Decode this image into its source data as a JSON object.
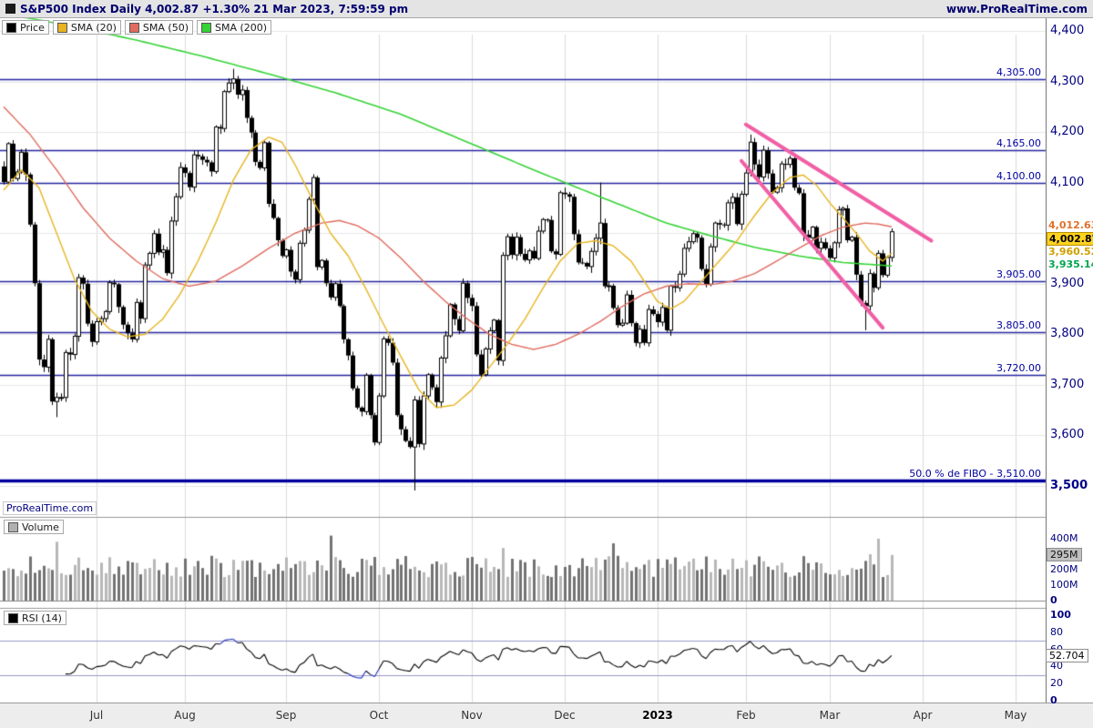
{
  "header": {
    "title": "S&P500 Index Daily 4,002.87 +1.30% 21 Mar 2023, 7:59:59 pm",
    "website": "www.ProRealTime.com"
  },
  "watermark": "ProRealTime.com",
  "legends": {
    "main": [
      {
        "label": "Price",
        "color": "#000000"
      },
      {
        "label": "SMA (20)",
        "color": "#e8b520"
      },
      {
        "label": "SMA (50)",
        "color": "#e06c60"
      },
      {
        "label": "SMA (200)",
        "color": "#35d435"
      }
    ],
    "volume": [
      {
        "label": "Volume",
        "color": "#b0b0b0"
      }
    ],
    "rsi": [
      {
        "label": "RSI (14)",
        "color": "#000000"
      }
    ]
  },
  "axis": {
    "price_ticks": [
      {
        "label": "4,400",
        "value": 4400
      },
      {
        "label": "4,300",
        "value": 4300
      },
      {
        "label": "4,200",
        "value": 4200
      },
      {
        "label": "4,100",
        "value": 4100
      },
      {
        "label": "3,900",
        "value": 3900
      },
      {
        "label": "3,800",
        "value": 3800
      },
      {
        "label": "3,700",
        "value": 3700
      },
      {
        "label": "3,600",
        "value": 3600
      },
      {
        "label": "3,500",
        "value": 3500,
        "bold": true
      }
    ],
    "volume_ticks": [
      {
        "label": "400M",
        "value": 400
      },
      {
        "label": "200M",
        "value": 200
      },
      {
        "label": "100M",
        "value": 100
      },
      {
        "label": "0",
        "value": 0,
        "bold": true
      }
    ],
    "volume_current": {
      "label": "295M",
      "value": 295
    },
    "rsi_ticks": [
      {
        "label": "100",
        "value": 100,
        "bold": true
      },
      {
        "label": "80",
        "value": 80
      },
      {
        "label": "60",
        "value": 60
      },
      {
        "label": "40",
        "value": 40
      },
      {
        "label": "20",
        "value": 20
      },
      {
        "label": "0",
        "value": 0,
        "bold": true
      }
    ],
    "rsi_current": {
      "label": "52.704",
      "value": 52.704
    }
  },
  "months": [
    {
      "label": "Jul",
      "index": 21
    },
    {
      "label": "Aug",
      "index": 41
    },
    {
      "label": "Sep",
      "index": 64
    },
    {
      "label": "Oct",
      "index": 85
    },
    {
      "label": "Nov",
      "index": 106
    },
    {
      "label": "Dec",
      "index": 127
    },
    {
      "label": "2023",
      "index": 148,
      "bold": true
    },
    {
      "label": "Feb",
      "index": 168
    },
    {
      "label": "Mar",
      "index": 187
    },
    {
      "label": "Apr",
      "index": 208
    },
    {
      "label": "May",
      "index": 229
    }
  ],
  "levels": [
    {
      "label": "4,305.00",
      "value": 4305
    },
    {
      "label": "4,165.00",
      "value": 4165
    },
    {
      "label": "4,100.00",
      "value": 4100
    },
    {
      "label": "3,905.00",
      "value": 3905
    },
    {
      "label": "3,805.00",
      "value": 3805
    },
    {
      "label": "3,720.00",
      "value": 3720
    },
    {
      "label": "50.0 % de FIBO -  3,510.00",
      "value": 3510,
      "major": true
    }
  ],
  "price_tags": [
    {
      "label": "4,012.63",
      "value": 4012.63,
      "color": "#e0712c",
      "bg": "#ffffff"
    },
    {
      "label": "4,002.87",
      "value": 4002.87,
      "color": "#000000",
      "bg": "#ffd21e"
    },
    {
      "label": "3,960.52",
      "value": 3960.52,
      "color": "#cfa000",
      "bg": "#ffffff"
    },
    {
      "label": "3,935.14",
      "value": 3935.14,
      "color": "#00a651",
      "bg": "#ffffff"
    }
  ],
  "chart_data": [
    {
      "type": "candlestick",
      "title": "S&P500 Index Daily",
      "ylabel": "Price",
      "ylim": [
        3500,
        4400
      ],
      "first_open": 4132,
      "closes": [
        4101,
        4177,
        4108,
        4121,
        4160,
        4116,
        4017,
        3901,
        3750,
        3735,
        3790,
        3667,
        3675,
        3675,
        3764,
        3760,
        3796,
        3912,
        3900,
        3821,
        3785,
        3825,
        3831,
        3845,
        3902,
        3899,
        3854,
        3819,
        3802,
        3790,
        3863,
        3831,
        3937,
        3960,
        3999,
        3962,
        3967,
        3921,
        4024,
        4072,
        4130,
        4119,
        4091,
        4155,
        4152,
        4145,
        4140,
        4122,
        4210,
        4207,
        4280,
        4297,
        4305,
        4274,
        4283,
        4228,
        4199,
        4141,
        4129,
        4179,
        4058,
        4030,
        3986,
        3955,
        3967,
        3924,
        3908,
        3980,
        4006,
        4067,
        4110,
        3933,
        3946,
        3901,
        3873,
        3900,
        3856,
        3790,
        3758,
        3693,
        3655,
        3647,
        3719,
        3640,
        3586,
        3678,
        3791,
        3783,
        3744,
        3640,
        3612,
        3589,
        3577,
        3670,
        3583,
        3678,
        3720,
        3695,
        3666,
        3753,
        3797,
        3859,
        3830,
        3807,
        3901,
        3872,
        3856,
        3760,
        3720,
        3771,
        3807,
        3828,
        3748,
        3956,
        3993,
        3957,
        3992,
        3959,
        3947,
        3965,
        3950,
        4004,
        4027,
        4026,
        3964,
        3958,
        4080,
        4077,
        4072,
        3998,
        3942,
        3941,
        3934,
        3964,
        3990,
        4020,
        3895,
        3896,
        3852,
        3818,
        3822,
        3878,
        3822,
        3783,
        3810,
        3783,
        3849,
        3840,
        3824,
        3853,
        3808,
        3895,
        3892,
        3919,
        3970,
        3983,
        3999,
        3991,
        3929,
        3899,
        3973,
        4020,
        4017,
        4016,
        4060,
        4071,
        4018,
        4077,
        4119,
        4180,
        4136,
        4111,
        4164,
        4118,
        4081,
        4090,
        4137,
        4136,
        4148,
        4090,
        4079,
        3997,
        3991,
        4012,
        3970,
        3982,
        3970,
        3951,
        3981,
        4046,
        4049,
        3986,
        3992,
        3918,
        3862,
        3856,
        3920,
        3892,
        3960,
        3917,
        3952,
        4002.87
      ],
      "wick_overrides": {
        "12": {
          "low": 3636
        },
        "52": {
          "high": 4325
        },
        "93": {
          "low": 3491
        },
        "135": {
          "high": 4100
        },
        "169": {
          "high": 4195
        },
        "195": {
          "low": 3808
        }
      },
      "sma20_anchors": [
        [
          0,
          4085
        ],
        [
          4,
          4125
        ],
        [
          8,
          4090
        ],
        [
          12,
          4000
        ],
        [
          16,
          3910
        ],
        [
          20,
          3845
        ],
        [
          24,
          3810
        ],
        [
          28,
          3795
        ],
        [
          32,
          3800
        ],
        [
          36,
          3830
        ],
        [
          40,
          3880
        ],
        [
          44,
          3945
        ],
        [
          48,
          4020
        ],
        [
          52,
          4105
        ],
        [
          56,
          4165
        ],
        [
          60,
          4190
        ],
        [
          63,
          4180
        ],
        [
          66,
          4135
        ],
        [
          70,
          4065
        ],
        [
          74,
          4000
        ],
        [
          78,
          3955
        ],
        [
          82,
          3890
        ],
        [
          86,
          3820
        ],
        [
          90,
          3755
        ],
        [
          94,
          3690
        ],
        [
          98,
          3655
        ],
        [
          102,
          3660
        ],
        [
          106,
          3690
        ],
        [
          110,
          3735
        ],
        [
          114,
          3780
        ],
        [
          118,
          3830
        ],
        [
          122,
          3890
        ],
        [
          126,
          3945
        ],
        [
          130,
          3980
        ],
        [
          134,
          3985
        ],
        [
          138,
          3975
        ],
        [
          142,
          3945
        ],
        [
          145,
          3905
        ],
        [
          148,
          3865
        ],
        [
          151,
          3850
        ],
        [
          154,
          3865
        ],
        [
          158,
          3905
        ],
        [
          162,
          3945
        ],
        [
          166,
          3985
        ],
        [
          170,
          4035
        ],
        [
          174,
          4080
        ],
        [
          178,
          4110
        ],
        [
          181,
          4115
        ],
        [
          184,
          4095
        ],
        [
          187,
          4060
        ],
        [
          190,
          4030
        ],
        [
          193,
          4000
        ],
        [
          196,
          3965
        ],
        [
          199,
          3945
        ],
        [
          201,
          3960.52
        ]
      ],
      "sma50_anchors": [
        [
          0,
          4250
        ],
        [
          6,
          4195
        ],
        [
          12,
          4125
        ],
        [
          18,
          4050
        ],
        [
          24,
          3990
        ],
        [
          30,
          3945
        ],
        [
          36,
          3910
        ],
        [
          42,
          3895
        ],
        [
          48,
          3905
        ],
        [
          54,
          3935
        ],
        [
          60,
          3970
        ],
        [
          66,
          4000
        ],
        [
          72,
          4020
        ],
        [
          76,
          4025
        ],
        [
          80,
          4015
        ],
        [
          85,
          3990
        ],
        [
          90,
          3950
        ],
        [
          95,
          3905
        ],
        [
          100,
          3865
        ],
        [
          105,
          3830
        ],
        [
          110,
          3800
        ],
        [
          115,
          3780
        ],
        [
          120,
          3770
        ],
        [
          125,
          3780
        ],
        [
          130,
          3800
        ],
        [
          135,
          3825
        ],
        [
          140,
          3855
        ],
        [
          145,
          3880
        ],
        [
          150,
          3895
        ],
        [
          155,
          3900
        ],
        [
          160,
          3898
        ],
        [
          165,
          3905
        ],
        [
          170,
          3920
        ],
        [
          175,
          3945
        ],
        [
          180,
          3970
        ],
        [
          185,
          3995
        ],
        [
          190,
          4012
        ],
        [
          195,
          4020
        ],
        [
          198,
          4018
        ],
        [
          201,
          4012.63
        ]
      ],
      "sma200_anchors": [
        [
          0,
          4435
        ],
        [
          15,
          4410
        ],
        [
          30,
          4382
        ],
        [
          45,
          4350
        ],
        [
          60,
          4315
        ],
        [
          75,
          4278
        ],
        [
          90,
          4235
        ],
        [
          105,
          4180
        ],
        [
          120,
          4125
        ],
        [
          135,
          4072
        ],
        [
          150,
          4020
        ],
        [
          160,
          3995
        ],
        [
          170,
          3972
        ],
        [
          180,
          3955
        ],
        [
          190,
          3942
        ],
        [
          201,
          3935.14
        ]
      ],
      "trendlines": [
        {
          "from": [
            168,
            4215
          ],
          "to": [
            210,
            3985
          ],
          "color": "#f05fa5"
        },
        {
          "from": [
            167,
            4143
          ],
          "to": [
            199,
            3813
          ],
          "color": "#f05fa5"
        }
      ],
      "support_resistance": [
        4305,
        4165,
        4100,
        3905,
        3805,
        3720,
        3510
      ]
    },
    {
      "type": "bar",
      "name": "Volume",
      "unit": "M shares",
      "ylim": [
        0,
        440
      ],
      "base": 150,
      "var": 140,
      "spikes": {
        "12": 380,
        "74": 420,
        "113": 340,
        "138": 370,
        "196": 300,
        "198": 400,
        "201": 295
      }
    },
    {
      "type": "line",
      "name": "RSI (14)",
      "period": 14,
      "ylim": [
        0,
        100
      ],
      "thresholds": [
        30,
        70
      ],
      "current": 52.704
    }
  ]
}
